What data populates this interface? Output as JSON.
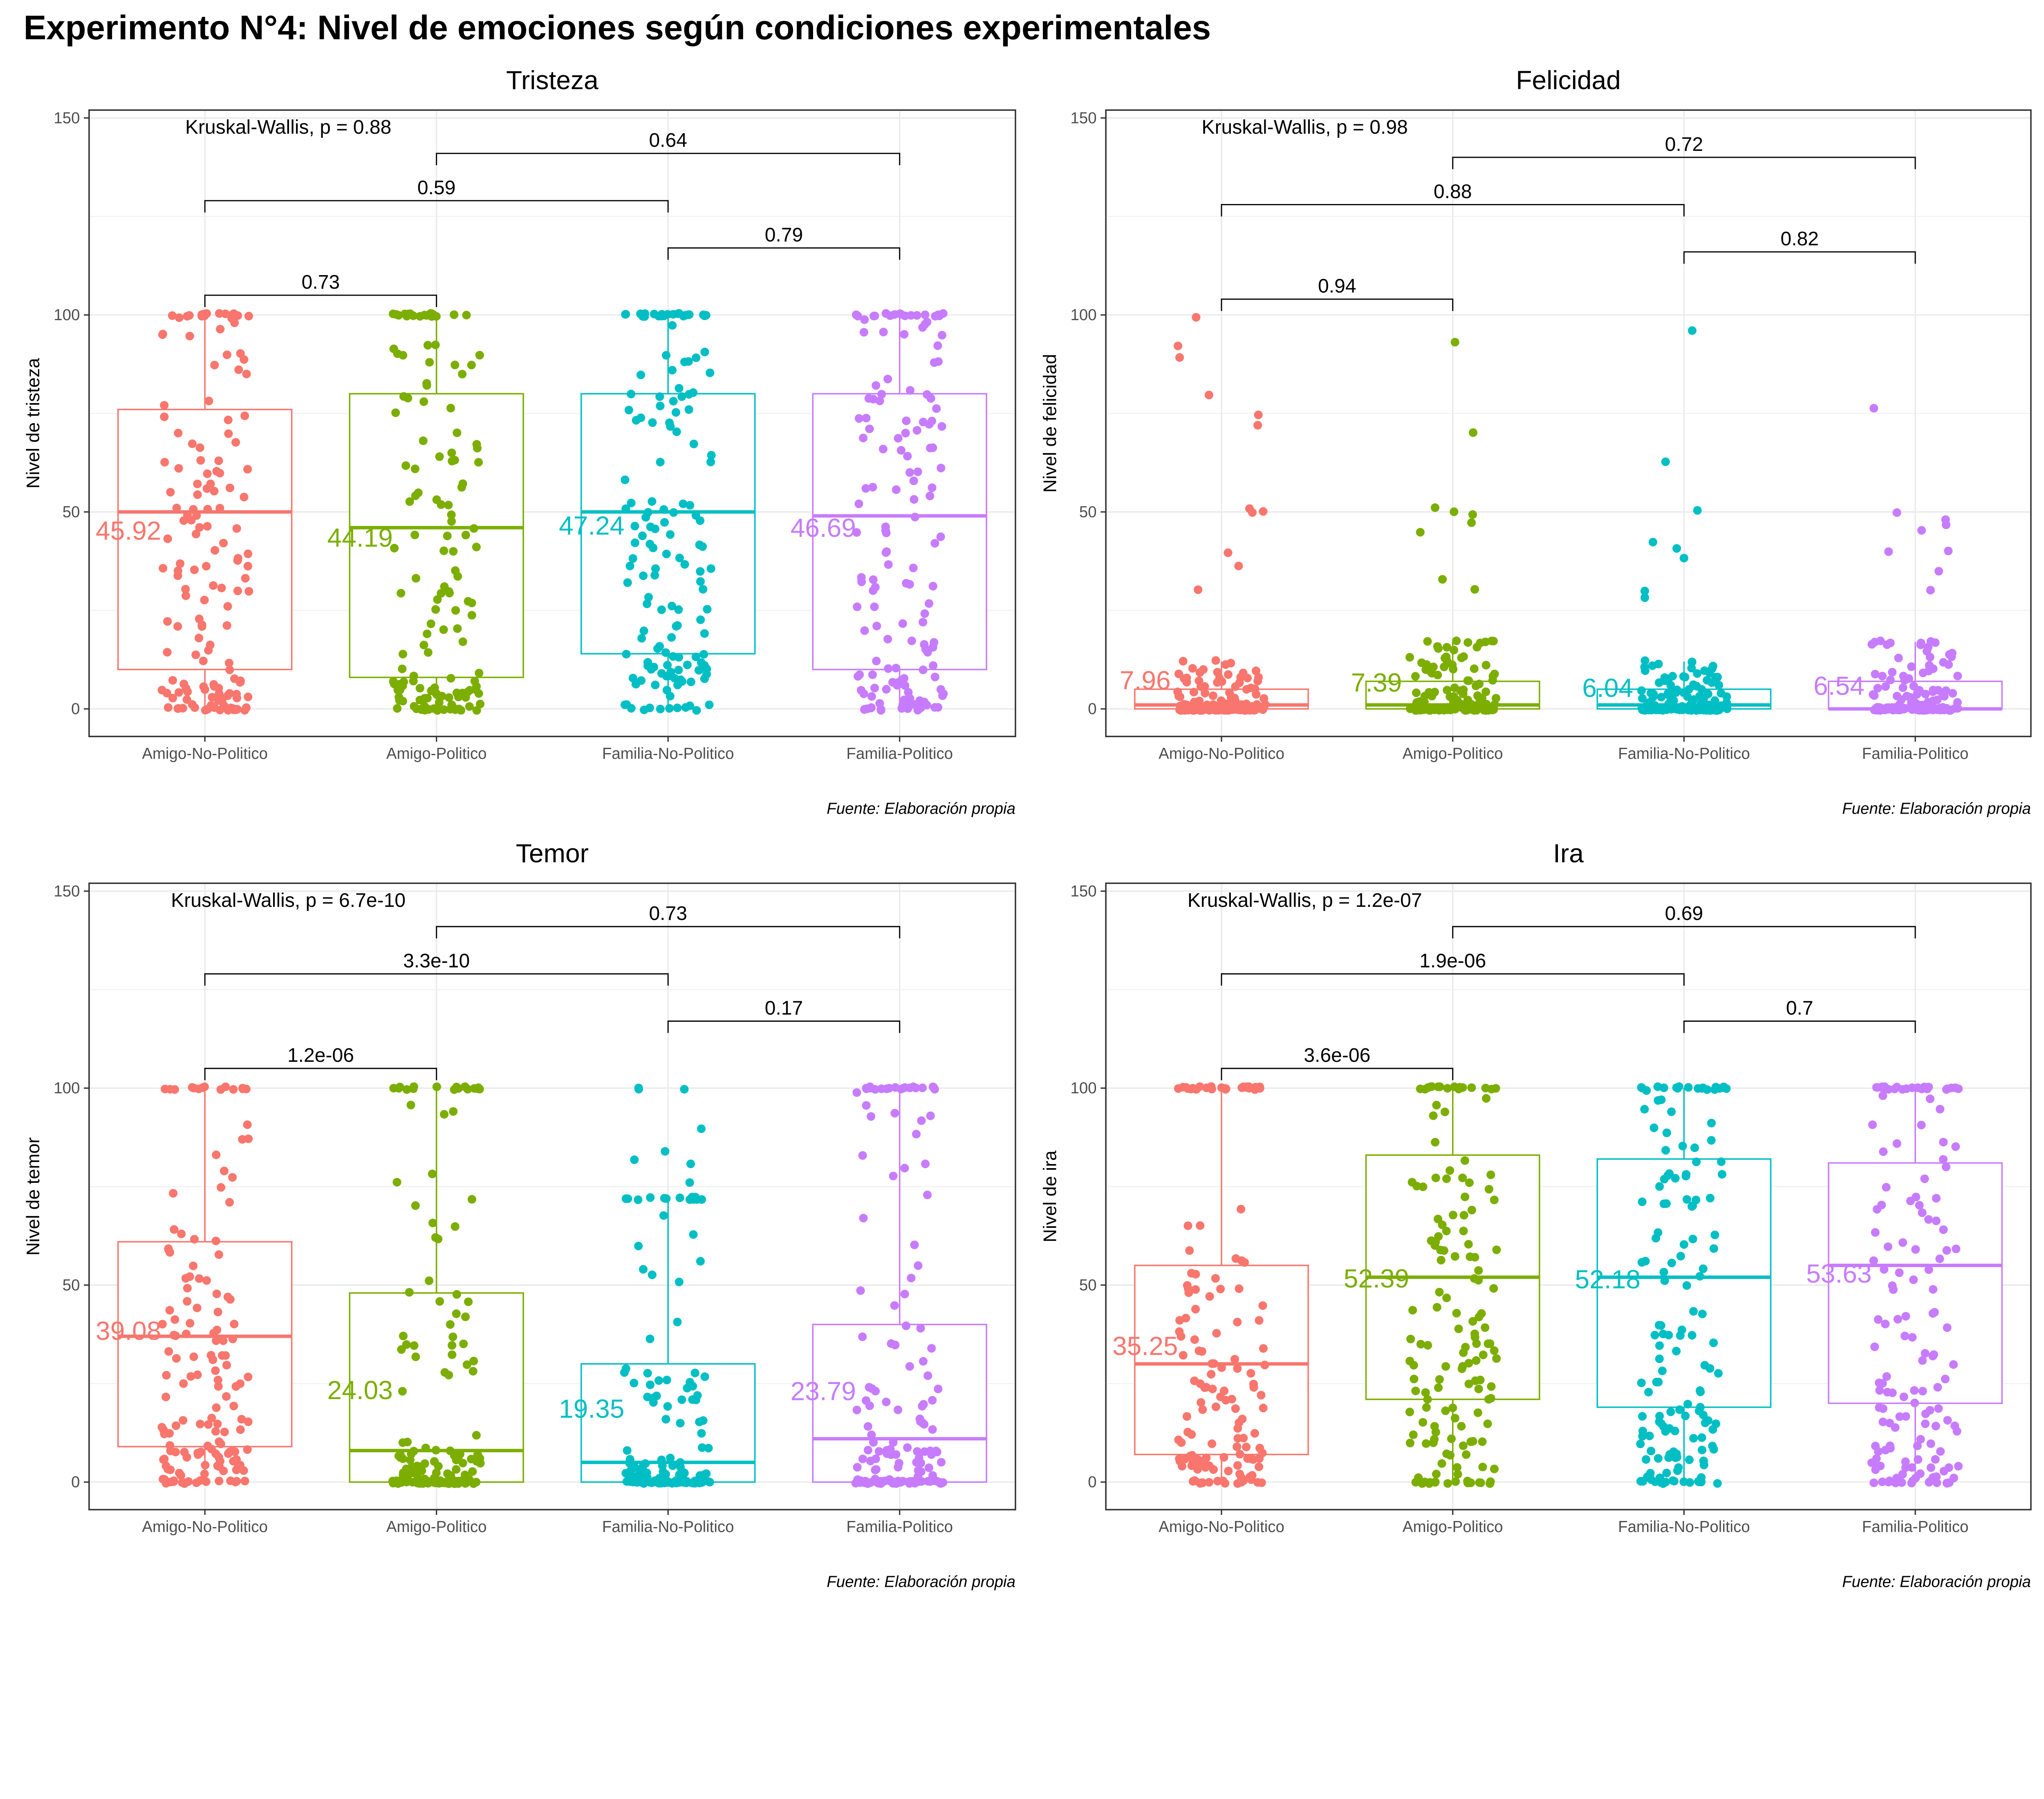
{
  "title": "Experimento N°4: Nivel de emociones según condiciones experimentales",
  "caption": "Fuente: Elaboración propia",
  "colors": {
    "Amigo-No-Politico": "#F8766D",
    "Amigo-Politico": "#7CAE00",
    "Familia-No-Politico": "#00BFC4",
    "Familia-Politico": "#C77CFF"
  },
  "chart_data": [
    {
      "type": "box",
      "title": "Tristeza",
      "ylabel": "Nivel de tristeza",
      "xlabel": "",
      "categories": [
        "Amigo-No-Politico",
        "Amigo-Politico",
        "Familia-No-Politico",
        "Familia-Politico"
      ],
      "ylim": [
        -7,
        152
      ],
      "yticks": [
        0,
        50,
        100,
        150
      ],
      "boxes": [
        {
          "q1": 10,
          "median": 50,
          "q3": 76,
          "whisker_low": 0,
          "whisker_high": 100
        },
        {
          "q1": 8,
          "median": 46,
          "q3": 80,
          "whisker_low": 0,
          "whisker_high": 100
        },
        {
          "q1": 14,
          "median": 50,
          "q3": 80,
          "whisker_low": 0,
          "whisker_high": 100
        },
        {
          "q1": 10,
          "median": 49,
          "q3": 80,
          "whisker_low": 0,
          "whisker_high": 100
        }
      ],
      "means": [
        "45.92",
        "44.19",
        "47.24",
        "46.69"
      ],
      "mean_values": [
        45.92,
        44.19,
        47.24,
        46.69
      ],
      "kruskal": "Kruskal-Wallis, p = 0.88",
      "comparisons": [
        {
          "from": 1,
          "to": 2,
          "y": 105,
          "label": "0.73"
        },
        {
          "from": 3,
          "to": 4,
          "y": 117,
          "label": "0.79"
        },
        {
          "from": 1,
          "to": 3,
          "y": 129,
          "label": "0.59"
        },
        {
          "from": 2,
          "to": 4,
          "y": 141,
          "label": "0.64"
        }
      ],
      "points": {
        "seed": 11,
        "n": 150,
        "profile": "spread",
        "outliers": []
      }
    },
    {
      "type": "box",
      "title": "Felicidad",
      "ylabel": "Nivel de felicidad",
      "xlabel": "",
      "categories": [
        "Amigo-No-Politico",
        "Amigo-Politico",
        "Familia-No-Politico",
        "Familia-Politico"
      ],
      "ylim": [
        -7,
        152
      ],
      "yticks": [
        0,
        50,
        100,
        150
      ],
      "boxes": [
        {
          "q1": 0,
          "median": 1,
          "q3": 5,
          "whisker_low": 0,
          "whisker_high": 12
        },
        {
          "q1": 0,
          "median": 1,
          "q3": 7,
          "whisker_low": 0,
          "whisker_high": 17
        },
        {
          "q1": 0,
          "median": 1,
          "q3": 5,
          "whisker_low": 0,
          "whisker_high": 12
        },
        {
          "q1": 0,
          "median": 0,
          "q3": 7,
          "whisker_low": 0,
          "whisker_high": 17
        }
      ],
      "means": [
        "7.96",
        "7.39",
        "6.04",
        "6.54"
      ],
      "mean_values": [
        7.96,
        7.39,
        6.04,
        6.54
      ],
      "kruskal": "Kruskal-Wallis, p = 0.98",
      "comparisons": [
        {
          "from": 1,
          "to": 2,
          "y": 104,
          "label": "0.94"
        },
        {
          "from": 3,
          "to": 4,
          "y": 116,
          "label": "0.82"
        },
        {
          "from": 1,
          "to": 3,
          "y": 128,
          "label": "0.88"
        },
        {
          "from": 2,
          "to": 4,
          "y": 140,
          "label": "0.72"
        }
      ],
      "points": {
        "seed": 23,
        "n": 150,
        "profile": "low",
        "outliers": [
          [
            99,
            92,
            89,
            80,
            75,
            72,
            51,
            50,
            50,
            40,
            36,
            30
          ],
          [
            93,
            70,
            51,
            50,
            49,
            47,
            45,
            33,
            30
          ],
          [
            96,
            63,
            50,
            42,
            41,
            38,
            30,
            28
          ],
          [
            76,
            50,
            48,
            47,
            45,
            40,
            40,
            35,
            30
          ]
        ]
      }
    },
    {
      "type": "box",
      "title": "Temor",
      "ylabel": "Nivel de temor",
      "xlabel": "",
      "categories": [
        "Amigo-No-Politico",
        "Amigo-Politico",
        "Familia-No-Politico",
        "Familia-Politico"
      ],
      "ylim": [
        -7,
        152
      ],
      "yticks": [
        0,
        50,
        100,
        150
      ],
      "boxes": [
        {
          "q1": 9,
          "median": 37,
          "q3": 61,
          "whisker_low": 0,
          "whisker_high": 100
        },
        {
          "q1": 0,
          "median": 8,
          "q3": 48,
          "whisker_low": 0,
          "whisker_high": 100
        },
        {
          "q1": 0,
          "median": 5,
          "q3": 30,
          "whisker_low": 0,
          "whisker_high": 72
        },
        {
          "q1": 0,
          "median": 11,
          "q3": 40,
          "whisker_low": 0,
          "whisker_high": 100
        }
      ],
      "means": [
        "39.08",
        "24.03",
        "19.35",
        "23.79"
      ],
      "mean_values": [
        39.08,
        24.03,
        19.35,
        23.79
      ],
      "kruskal": "Kruskal-Wallis, p = 6.7e-10",
      "comparisons": [
        {
          "from": 1,
          "to": 2,
          "y": 105,
          "label": "1.2e-06"
        },
        {
          "from": 3,
          "to": 4,
          "y": 117,
          "label": "0.17"
        },
        {
          "from": 1,
          "to": 3,
          "y": 129,
          "label": "3.3e-10"
        },
        {
          "from": 2,
          "to": 4,
          "y": 141,
          "label": "0.73"
        }
      ],
      "points": {
        "seed": 37,
        "n": 150,
        "profile": "skewed",
        "outliers": [
          [],
          [],
          [
            100,
            100,
            100,
            90,
            84,
            82,
            81,
            76
          ],
          []
        ]
      }
    },
    {
      "type": "box",
      "title": "Ira",
      "ylabel": "Nivel de ira",
      "xlabel": "",
      "categories": [
        "Amigo-No-Politico",
        "Amigo-Politico",
        "Familia-No-Politico",
        "Familia-Politico"
      ],
      "ylim": [
        -7,
        152
      ],
      "yticks": [
        0,
        50,
        100,
        150
      ],
      "boxes": [
        {
          "q1": 7,
          "median": 30,
          "q3": 55,
          "whisker_low": 0,
          "whisker_high": 100
        },
        {
          "q1": 21,
          "median": 52,
          "q3": 83,
          "whisker_low": 0,
          "whisker_high": 100
        },
        {
          "q1": 19,
          "median": 52,
          "q3": 82,
          "whisker_low": 0,
          "whisker_high": 100
        },
        {
          "q1": 20,
          "median": 55,
          "q3": 81,
          "whisker_low": 0,
          "whisker_high": 100
        }
      ],
      "means": [
        "35.25",
        "52.39",
        "52.18",
        "53.63"
      ],
      "mean_values": [
        35.25,
        52.39,
        52.18,
        53.63
      ],
      "kruskal": "Kruskal-Wallis, p = 1.2e-07",
      "comparisons": [
        {
          "from": 1,
          "to": 2,
          "y": 105,
          "label": "3.6e-06"
        },
        {
          "from": 3,
          "to": 4,
          "y": 117,
          "label": "0.7"
        },
        {
          "from": 1,
          "to": 3,
          "y": 129,
          "label": "1.9e-06"
        },
        {
          "from": 2,
          "to": 4,
          "y": 141,
          "label": "0.69"
        }
      ],
      "points": {
        "seed": 53,
        "n": 150,
        "profile": "spread",
        "outliers": []
      }
    }
  ]
}
